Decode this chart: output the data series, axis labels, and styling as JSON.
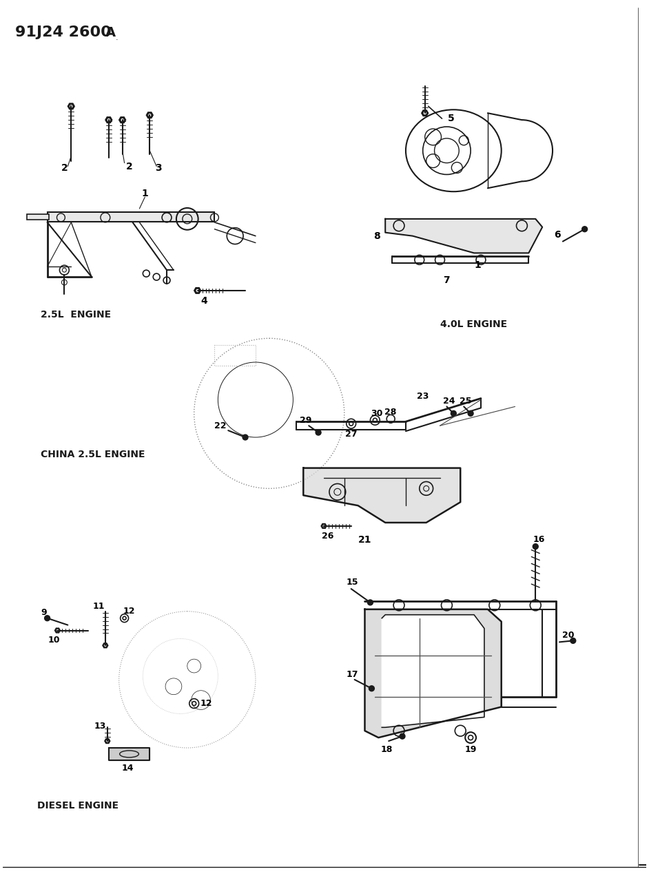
{
  "title": "91J24 2600",
  "title_suffix": "A",
  "background_color": "#ffffff",
  "text_color": "#000000",
  "lc": "#1a1a1a",
  "labels": {
    "top_left_engine": "2.5L  ENGINE",
    "top_right_engine": "4.0L ENGINE",
    "middle_engine": "CHINA 2.5L ENGINE",
    "bottom_engine": "DIESEL ENGINE"
  },
  "figsize": [
    9.42,
    12.75
  ],
  "dpi": 100
}
